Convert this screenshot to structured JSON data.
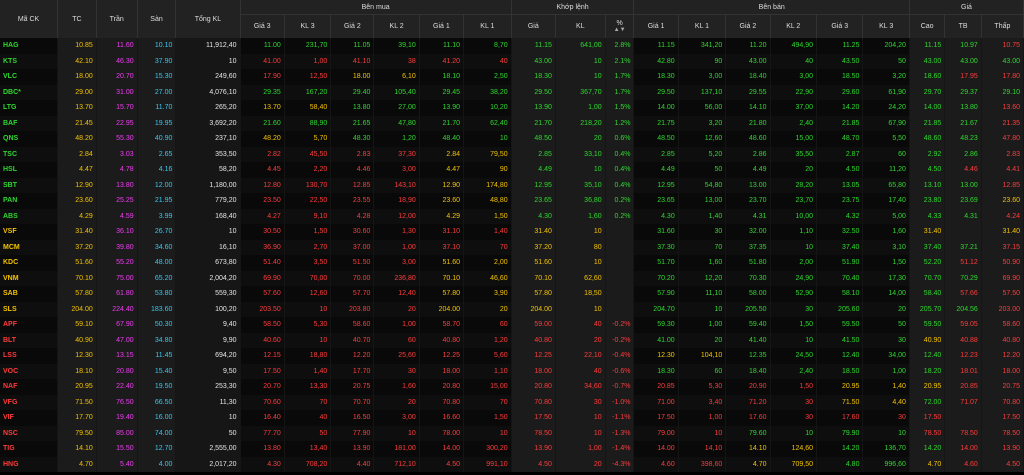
{
  "header": {
    "ma_ck": "Mã CK",
    "tc": "TC",
    "tran": "Trần",
    "san": "Sàn",
    "tong_kl": "Tổng KL",
    "ben_mua": "Bên mua",
    "khop_lenh": "Khớp lệnh",
    "ben_ban": "Bên bán",
    "gia_group": "Giá",
    "gia3": "Giá 3",
    "kl3": "KL 3",
    "gia2": "Giá 2",
    "kl2": "KL 2",
    "gia1": "Giá 1",
    "kl1": "KL 1",
    "khop_gia": "Giá",
    "khop_kl": "KL",
    "khop_pct": "%",
    "cao": "Cao",
    "tb": "TB",
    "thap": "Thấp",
    "sort_icon": "sort-icon"
  },
  "rows": [
    {
      "sym": "HAG",
      "s": "u",
      "tc": "10.85",
      "tran": "11.60",
      "san": "10.10",
      "vol": "11,912,40",
      "b3": "11.00",
      "b3c": "u",
      "bk3": "231,70",
      "b2": "11.05",
      "b2c": "u",
      "bk2": "39,10",
      "b1": "11.10",
      "b1c": "u",
      "bk1": "8,70",
      "mp": "11.15",
      "mc": "u",
      "mk": "641,00",
      "pct": "2.8%",
      "a1": "11.15",
      "a1c": "u",
      "ak1": "341,20",
      "a2": "11.20",
      "a2c": "u",
      "ak2": "494,90",
      "a3": "11.25",
      "a3c": "u",
      "ak3": "204,20",
      "hi": "11.15",
      "hic": "u",
      "av": "10.97",
      "avc": "u",
      "lo": "10.75",
      "loc": "d"
    },
    {
      "sym": "KTS",
      "s": "u",
      "tc": "42.10",
      "tran": "46.30",
      "san": "37.90",
      "vol": "10",
      "b3": "41.00",
      "b3c": "d",
      "bk3": "1,00",
      "b2": "41.10",
      "b2c": "d",
      "bk2": "38",
      "b1": "41.20",
      "b1c": "d",
      "bk1": "40",
      "mp": "43.00",
      "mc": "u",
      "mk": "10",
      "pct": "2.1%",
      "a1": "42.80",
      "a1c": "u",
      "ak1": "90",
      "a2": "43.00",
      "a2c": "u",
      "ak2": "40",
      "a3": "43.50",
      "a3c": "u",
      "ak3": "50",
      "hi": "43.00",
      "hic": "u",
      "av": "43.00",
      "avc": "u",
      "lo": "43.00",
      "loc": "u"
    },
    {
      "sym": "VLC",
      "s": "u",
      "tc": "18.00",
      "tran": "20.70",
      "san": "15.30",
      "vol": "249,60",
      "b3": "17.90",
      "b3c": "d",
      "bk3": "12,50",
      "b2": "18.00",
      "b2c": "e",
      "bk2": "6,10",
      "b1": "18.10",
      "b1c": "u",
      "bk1": "2,50",
      "mp": "18.30",
      "mc": "u",
      "mk": "10",
      "pct": "1.7%",
      "a1": "18.30",
      "a1c": "u",
      "ak1": "3,00",
      "a2": "18.40",
      "a2c": "u",
      "ak2": "3,00",
      "a3": "18.50",
      "a3c": "u",
      "ak3": "3,20",
      "hi": "18.60",
      "hic": "u",
      "av": "17.95",
      "avc": "d",
      "lo": "17.80",
      "loc": "d"
    },
    {
      "sym": "DBC*",
      "s": "u",
      "tc": "29.00",
      "tran": "31.00",
      "san": "27.00",
      "vol": "4,076,10",
      "b3": "29.35",
      "b3c": "u",
      "bk3": "167,20",
      "b2": "29.40",
      "b2c": "u",
      "bk2": "105,40",
      "b1": "29.45",
      "b1c": "u",
      "bk1": "38,20",
      "mp": "29.50",
      "mc": "u",
      "mk": "367,70",
      "pct": "1.7%",
      "a1": "29.50",
      "a1c": "u",
      "ak1": "137,10",
      "a2": "29.55",
      "a2c": "u",
      "ak2": "22,90",
      "a3": "29.60",
      "a3c": "u",
      "ak3": "61,90",
      "hi": "29.70",
      "hic": "u",
      "av": "29.37",
      "avc": "u",
      "lo": "29.10",
      "loc": "u"
    },
    {
      "sym": "LTG",
      "s": "u",
      "tc": "13.70",
      "tran": "15.70",
      "san": "11.70",
      "vol": "265,20",
      "b3": "13.70",
      "b3c": "e",
      "bk3": "58,40",
      "b2": "13.80",
      "b2c": "u",
      "bk2": "27,00",
      "b1": "13.90",
      "b1c": "u",
      "bk1": "10,20",
      "mp": "13.90",
      "mc": "u",
      "mk": "1,00",
      "pct": "1.5%",
      "a1": "14.00",
      "a1c": "u",
      "ak1": "56,00",
      "a2": "14.10",
      "a2c": "u",
      "ak2": "37,00",
      "a3": "14.20",
      "a3c": "u",
      "ak3": "24,20",
      "hi": "14.00",
      "hic": "u",
      "av": "13.80",
      "avc": "u",
      "lo": "13.60",
      "loc": "d"
    },
    {
      "sym": "BAF",
      "s": "u",
      "tc": "21.45",
      "tran": "22.95",
      "san": "19.95",
      "vol": "3,692,20",
      "b3": "21.60",
      "b3c": "u",
      "bk3": "88,90",
      "b2": "21.65",
      "b2c": "u",
      "bk2": "47,80",
      "b1": "21.70",
      "b1c": "u",
      "bk1": "62,40",
      "mp": "21.70",
      "mc": "u",
      "mk": "218,20",
      "pct": "1.2%",
      "a1": "21.75",
      "a1c": "u",
      "ak1": "3,20",
      "a2": "21.80",
      "a2c": "u",
      "ak2": "2,40",
      "a3": "21.85",
      "a3c": "u",
      "ak3": "67,90",
      "hi": "21.85",
      "hic": "u",
      "av": "21.67",
      "avc": "u",
      "lo": "21.35",
      "loc": "d"
    },
    {
      "sym": "QNS",
      "s": "u",
      "tc": "48.20",
      "tran": "55.30",
      "san": "40.90",
      "vol": "237,10",
      "b3": "48.20",
      "b3c": "e",
      "bk3": "5,70",
      "b2": "48.30",
      "b2c": "u",
      "bk2": "1,20",
      "b1": "48.40",
      "b1c": "u",
      "bk1": "10",
      "mp": "48.50",
      "mc": "u",
      "mk": "20",
      "pct": "0.6%",
      "a1": "48.50",
      "a1c": "u",
      "ak1": "12,60",
      "a2": "48.60",
      "a2c": "u",
      "ak2": "15,00",
      "a3": "48.70",
      "a3c": "u",
      "ak3": "5,50",
      "hi": "48.60",
      "hic": "u",
      "av": "48.23",
      "avc": "u",
      "lo": "47.80",
      "loc": "d"
    },
    {
      "sym": "TSC",
      "s": "u",
      "tc": "2.84",
      "tran": "3.03",
      "san": "2.65",
      "vol": "353,50",
      "b3": "2.82",
      "b3c": "d",
      "bk3": "45,50",
      "b2": "2.83",
      "b2c": "d",
      "bk2": "37,30",
      "b1": "2.84",
      "b1c": "e",
      "bk1": "79,50",
      "mp": "2.85",
      "mc": "u",
      "mk": "33,10",
      "pct": "0.4%",
      "a1": "2.85",
      "a1c": "u",
      "ak1": "5,20",
      "a2": "2.86",
      "a2c": "u",
      "ak2": "35,50",
      "a3": "2.87",
      "a3c": "u",
      "ak3": "60",
      "hi": "2.92",
      "hic": "u",
      "av": "2.86",
      "avc": "u",
      "lo": "2.83",
      "loc": "d"
    },
    {
      "sym": "HSL",
      "s": "u",
      "tc": "4.47",
      "tran": "4.78",
      "san": "4.16",
      "vol": "58,20",
      "b3": "4.45",
      "b3c": "d",
      "bk3": "2,20",
      "b2": "4.46",
      "b2c": "d",
      "bk2": "3,00",
      "b1": "4.47",
      "b1c": "e",
      "bk1": "90",
      "mp": "4.49",
      "mc": "u",
      "mk": "10",
      "pct": "0.4%",
      "a1": "4.49",
      "a1c": "u",
      "ak1": "50",
      "a2": "4.49",
      "a2c": "u",
      "ak2": "20",
      "a3": "4.50",
      "a3c": "u",
      "ak3": "11,20",
      "hi": "4.50",
      "hic": "u",
      "av": "4.46",
      "avc": "d",
      "lo": "4.41",
      "loc": "d"
    },
    {
      "sym": "SBT",
      "s": "u",
      "tc": "12.90",
      "tran": "13.80",
      "san": "12.00",
      "vol": "1,180,00",
      "b3": "12.80",
      "b3c": "d",
      "bk3": "130,70",
      "b2": "12.85",
      "b2c": "d",
      "bk2": "143,10",
      "b1": "12.90",
      "b1c": "e",
      "bk1": "174,80",
      "mp": "12.95",
      "mc": "u",
      "mk": "35,10",
      "pct": "0.4%",
      "a1": "12.95",
      "a1c": "u",
      "ak1": "54,80",
      "a2": "13.00",
      "a2c": "u",
      "ak2": "28,20",
      "a3": "13.05",
      "a3c": "u",
      "ak3": "65,80",
      "hi": "13.10",
      "hic": "u",
      "av": "13.00",
      "avc": "u",
      "lo": "12.85",
      "loc": "d"
    },
    {
      "sym": "PAN",
      "s": "u",
      "tc": "23.60",
      "tran": "25.25",
      "san": "21.95",
      "vol": "779,20",
      "b3": "23.50",
      "b3c": "d",
      "bk3": "22,50",
      "b2": "23.55",
      "b2c": "d",
      "bk2": "18,90",
      "b1": "23.60",
      "b1c": "e",
      "bk1": "48,80",
      "mp": "23.65",
      "mc": "u",
      "mk": "36,80",
      "pct": "0.2%",
      "a1": "23.65",
      "a1c": "u",
      "ak1": "13,00",
      "a2": "23.70",
      "a2c": "u",
      "ak2": "23,70",
      "a3": "23.75",
      "a3c": "u",
      "ak3": "17,40",
      "hi": "23.80",
      "hic": "u",
      "av": "23.69",
      "avc": "u",
      "lo": "23.60",
      "loc": "e"
    },
    {
      "sym": "ABS",
      "s": "u",
      "tc": "4.29",
      "tran": "4.59",
      "san": "3.99",
      "vol": "168,40",
      "b3": "4.27",
      "b3c": "d",
      "bk3": "9,10",
      "b2": "4.28",
      "b2c": "d",
      "bk2": "12,00",
      "b1": "4.29",
      "b1c": "e",
      "bk1": "1,50",
      "mp": "4.30",
      "mc": "u",
      "mk": "1,60",
      "pct": "0.2%",
      "a1": "4.30",
      "a1c": "u",
      "ak1": "1,40",
      "a2": "4.31",
      "a2c": "u",
      "ak2": "10,00",
      "a3": "4.32",
      "a3c": "u",
      "ak3": "5,00",
      "hi": "4.33",
      "hic": "u",
      "av": "4.31",
      "avc": "u",
      "lo": "4.24",
      "loc": "d"
    },
    {
      "sym": "VSF",
      "s": "e",
      "tc": "31.40",
      "tran": "36.10",
      "san": "26.70",
      "vol": "10",
      "b3": "30.50",
      "b3c": "d",
      "bk3": "1,50",
      "b2": "30.60",
      "b2c": "d",
      "bk2": "1,30",
      "b1": "31.10",
      "b1c": "d",
      "bk1": "1,40",
      "mp": "31.40",
      "mc": "e",
      "mk": "10",
      "pct": "",
      "a1": "31.60",
      "a1c": "u",
      "ak1": "30",
      "a2": "32.00",
      "a2c": "u",
      "ak2": "1,10",
      "a3": "32.50",
      "a3c": "u",
      "ak3": "1,60",
      "hi": "31.40",
      "hic": "e",
      "av": "",
      "avc": "e",
      "lo": "31.40",
      "loc": "e"
    },
    {
      "sym": "MCM",
      "s": "e",
      "tc": "37.20",
      "tran": "39.80",
      "san": "34.60",
      "vol": "16,10",
      "b3": "36.90",
      "b3c": "d",
      "bk3": "2,70",
      "b2": "37.00",
      "b2c": "d",
      "bk2": "1,00",
      "b1": "37.10",
      "b1c": "d",
      "bk1": "70",
      "mp": "37.20",
      "mc": "e",
      "mk": "80",
      "pct": "",
      "a1": "37.30",
      "a1c": "u",
      "ak1": "70",
      "a2": "37.35",
      "a2c": "u",
      "ak2": "10",
      "a3": "37.40",
      "a3c": "u",
      "ak3": "3,10",
      "hi": "37.40",
      "hic": "u",
      "av": "37.21",
      "avc": "u",
      "lo": "37.15",
      "loc": "d"
    },
    {
      "sym": "KDC",
      "s": "e",
      "tc": "51.60",
      "tran": "55.20",
      "san": "48.00",
      "vol": "673,80",
      "b3": "51.40",
      "b3c": "d",
      "bk3": "3,50",
      "b2": "51.50",
      "b2c": "d",
      "bk2": "3,00",
      "b1": "51.60",
      "b1c": "e",
      "bk1": "2,00",
      "mp": "51.60",
      "mc": "e",
      "mk": "10",
      "pct": "",
      "a1": "51.70",
      "a1c": "u",
      "ak1": "1,60",
      "a2": "51.80",
      "a2c": "u",
      "ak2": "2,00",
      "a3": "51.90",
      "a3c": "u",
      "ak3": "1,50",
      "hi": "52.20",
      "hic": "u",
      "av": "51.12",
      "avc": "d",
      "lo": "50.90",
      "loc": "d"
    },
    {
      "sym": "VNM",
      "s": "e",
      "tc": "70.10",
      "tran": "75.00",
      "san": "65.20",
      "vol": "2,004,20",
      "b3": "69.90",
      "b3c": "d",
      "bk3": "70,00",
      "b2": "70.00",
      "b2c": "d",
      "bk2": "236,80",
      "b1": "70.10",
      "b1c": "e",
      "bk1": "46,60",
      "mp": "70.10",
      "mc": "e",
      "mk": "62,60",
      "pct": "",
      "a1": "70.20",
      "a1c": "u",
      "ak1": "12,20",
      "a2": "70.30",
      "a2c": "u",
      "ak2": "24,90",
      "a3": "70.40",
      "a3c": "u",
      "ak3": "17,30",
      "hi": "70.70",
      "hic": "u",
      "av": "70.29",
      "avc": "u",
      "lo": "69.90",
      "loc": "d"
    },
    {
      "sym": "SAB",
      "s": "e",
      "tc": "57.80",
      "tran": "61.80",
      "san": "53.80",
      "vol": "559,30",
      "b3": "57.60",
      "b3c": "d",
      "bk3": "12,60",
      "b2": "57.70",
      "b2c": "d",
      "bk2": "12,40",
      "b1": "57.80",
      "b1c": "e",
      "bk1": "3,90",
      "mp": "57.80",
      "mc": "e",
      "mk": "18,50",
      "pct": "",
      "a1": "57.90",
      "a1c": "u",
      "ak1": "11,10",
      "a2": "58.00",
      "a2c": "u",
      "ak2": "52,90",
      "a3": "58.10",
      "a3c": "u",
      "ak3": "14,00",
      "hi": "58.40",
      "hic": "u",
      "av": "57.66",
      "avc": "d",
      "lo": "57.50",
      "loc": "d"
    },
    {
      "sym": "SLS",
      "s": "e",
      "tc": "204.00",
      "tran": "224.40",
      "san": "183.60",
      "vol": "100,20",
      "b3": "203.50",
      "b3c": "d",
      "bk3": "10",
      "b2": "203.80",
      "b2c": "d",
      "bk2": "20",
      "b1": "204.00",
      "b1c": "e",
      "bk1": "20",
      "mp": "204.00",
      "mc": "e",
      "mk": "10",
      "pct": "",
      "a1": "204.70",
      "a1c": "u",
      "ak1": "10",
      "a2": "205.50",
      "a2c": "u",
      "ak2": "30",
      "a3": "205.60",
      "a3c": "u",
      "ak3": "20",
      "hi": "205.70",
      "hic": "u",
      "av": "204.56",
      "avc": "u",
      "lo": "203.00",
      "loc": "d"
    },
    {
      "sym": "APF",
      "s": "d",
      "tc": "59.10",
      "tran": "67.90",
      "san": "50.30",
      "vol": "9,40",
      "b3": "58.50",
      "b3c": "d",
      "bk3": "5,30",
      "b2": "58.60",
      "b2c": "d",
      "bk2": "1,00",
      "b1": "58.70",
      "b1c": "d",
      "bk1": "60",
      "mp": "59.00",
      "mc": "d",
      "mk": "40",
      "pct": "-0.2%",
      "a1": "59.30",
      "a1c": "u",
      "ak1": "1,00",
      "a2": "59.40",
      "a2c": "u",
      "ak2": "1,50",
      "a3": "59.50",
      "a3c": "u",
      "ak3": "50",
      "hi": "59.50",
      "hic": "u",
      "av": "59.05",
      "avc": "d",
      "lo": "58.60",
      "loc": "d"
    },
    {
      "sym": "BLT",
      "s": "d",
      "tc": "40.90",
      "tran": "47.00",
      "san": "34.80",
      "vol": "9,90",
      "b3": "40.60",
      "b3c": "d",
      "bk3": "10",
      "b2": "40.70",
      "b2c": "d",
      "bk2": "60",
      "b1": "40.80",
      "b1c": "d",
      "bk1": "1,20",
      "mp": "40.80",
      "mc": "d",
      "mk": "20",
      "pct": "-0.2%",
      "a1": "41.00",
      "a1c": "u",
      "ak1": "20",
      "a2": "41.40",
      "a2c": "u",
      "ak2": "10",
      "a3": "41.50",
      "a3c": "u",
      "ak3": "30",
      "hi": "40.90",
      "hic": "e",
      "av": "40.88",
      "avc": "d",
      "lo": "40.80",
      "loc": "d"
    },
    {
      "sym": "LSS",
      "s": "d",
      "tc": "12.30",
      "tran": "13.15",
      "san": "11.45",
      "vol": "694,20",
      "b3": "12.15",
      "b3c": "d",
      "bk3": "18,80",
      "b2": "12.20",
      "b2c": "d",
      "bk2": "25,60",
      "b1": "12.25",
      "b1c": "d",
      "bk1": "5,60",
      "mp": "12.25",
      "mc": "d",
      "mk": "22,10",
      "pct": "-0.4%",
      "a1": "12.30",
      "a1c": "e",
      "ak1": "104,10",
      "a2": "12.35",
      "a2c": "u",
      "ak2": "24,50",
      "a3": "12.40",
      "a3c": "u",
      "ak3": "34,00",
      "hi": "12.40",
      "hic": "u",
      "av": "12.23",
      "avc": "d",
      "lo": "12.20",
      "loc": "d"
    },
    {
      "sym": "VOC",
      "s": "d",
      "tc": "18.10",
      "tran": "20.80",
      "san": "15.40",
      "vol": "9,50",
      "b3": "17.50",
      "b3c": "d",
      "bk3": "1,40",
      "b2": "17.70",
      "b2c": "d",
      "bk2": "30",
      "b1": "18.00",
      "b1c": "d",
      "bk1": "1,10",
      "mp": "18.00",
      "mc": "d",
      "mk": "40",
      "pct": "-0.6%",
      "a1": "18.30",
      "a1c": "u",
      "ak1": "60",
      "a2": "18.40",
      "a2c": "u",
      "ak2": "2,40",
      "a3": "18.50",
      "a3c": "u",
      "ak3": "1,00",
      "hi": "18.20",
      "hic": "u",
      "av": "18.01",
      "avc": "d",
      "lo": "18.00",
      "loc": "d"
    },
    {
      "sym": "NAF",
      "s": "d",
      "tc": "20.95",
      "tran": "22.40",
      "san": "19.50",
      "vol": "253,30",
      "b3": "20.70",
      "b3c": "d",
      "bk3": "13,30",
      "b2": "20.75",
      "b2c": "d",
      "bk2": "1,60",
      "b1": "20.80",
      "b1c": "d",
      "bk1": "15,00",
      "mp": "20.80",
      "mc": "d",
      "mk": "34,60",
      "pct": "-0.7%",
      "a1": "20.85",
      "a1c": "d",
      "ak1": "5,30",
      "a2": "20.90",
      "a2c": "d",
      "ak2": "1,50",
      "a3": "20.95",
      "a3c": "e",
      "ak3": "1,40",
      "hi": "20.95",
      "hic": "e",
      "av": "20.85",
      "avc": "d",
      "lo": "20.75",
      "loc": "d"
    },
    {
      "sym": "VFG",
      "s": "d",
      "tc": "71.50",
      "tran": "76.50",
      "san": "66.50",
      "vol": "11,30",
      "b3": "70.60",
      "b3c": "d",
      "bk3": "70",
      "b2": "70.70",
      "b2c": "d",
      "bk2": "20",
      "b1": "70.80",
      "b1c": "d",
      "bk1": "70",
      "mp": "70.80",
      "mc": "d",
      "mk": "30",
      "pct": "-1.0%",
      "a1": "71.00",
      "a1c": "d",
      "ak1": "3,40",
      "a2": "71.20",
      "a2c": "d",
      "ak2": "30",
      "a3": "71.50",
      "a3c": "e",
      "ak3": "4,40",
      "hi": "72.00",
      "hic": "u",
      "av": "71.07",
      "avc": "d",
      "lo": "70.80",
      "loc": "d"
    },
    {
      "sym": "VIF",
      "s": "d",
      "tc": "17.70",
      "tran": "19.40",
      "san": "16.00",
      "vol": "10",
      "b3": "16.40",
      "b3c": "d",
      "bk3": "40",
      "b2": "16.50",
      "b2c": "d",
      "bk2": "3,00",
      "b1": "16.60",
      "b1c": "d",
      "bk1": "1,50",
      "mp": "17.50",
      "mc": "d",
      "mk": "10",
      "pct": "-1.1%",
      "a1": "17.50",
      "a1c": "d",
      "ak1": "1,00",
      "a2": "17.60",
      "a2c": "d",
      "ak2": "30",
      "a3": "17.60",
      "a3c": "d",
      "ak3": "30",
      "hi": "17.50",
      "hic": "d",
      "av": "",
      "avc": "d",
      "lo": "17.50",
      "loc": "d"
    },
    {
      "sym": "NSC",
      "s": "d",
      "tc": "79.50",
      "tran": "85.00",
      "san": "74.00",
      "vol": "50",
      "b3": "77.70",
      "b3c": "d",
      "bk3": "50",
      "b2": "77.90",
      "b2c": "d",
      "bk2": "10",
      "b1": "78.00",
      "b1c": "d",
      "bk1": "10",
      "mp": "78.50",
      "mc": "d",
      "mk": "10",
      "pct": "-1.3%",
      "a1": "79.00",
      "a1c": "d",
      "ak1": "10",
      "a2": "79.60",
      "a2c": "u",
      "ak2": "10",
      "a3": "79.90",
      "a3c": "u",
      "ak3": "10",
      "hi": "78.50",
      "hic": "d",
      "av": "78.50",
      "avc": "d",
      "lo": "78.50",
      "loc": "d"
    },
    {
      "sym": "TIG",
      "s": "d",
      "tc": "14.10",
      "tran": "15.50",
      "san": "12.70",
      "vol": "2,555,00",
      "b3": "13.80",
      "b3c": "d",
      "bk3": "13,40",
      "b2": "13.90",
      "b2c": "d",
      "bk2": "181,00",
      "b1": "14.00",
      "b1c": "d",
      "bk1": "300,20",
      "mp": "13.90",
      "mc": "d",
      "mk": "1,00",
      "pct": "-1.4%",
      "a1": "14.00",
      "a1c": "d",
      "ak1": "14,10",
      "a2": "14.10",
      "a2c": "e",
      "ak2": "124,60",
      "a3": "14.20",
      "a3c": "u",
      "ak3": "136,70",
      "hi": "14.20",
      "hic": "u",
      "av": "14.00",
      "avc": "d",
      "lo": "13.90",
      "loc": "d"
    },
    {
      "sym": "HNG",
      "s": "d",
      "tc": "4.70",
      "tran": "5.40",
      "san": "4.00",
      "vol": "2,017,20",
      "b3": "4.30",
      "b3c": "d",
      "bk3": "708,20",
      "b2": "4.40",
      "b2c": "d",
      "bk2": "712,10",
      "b1": "4.50",
      "b1c": "d",
      "bk1": "991,10",
      "mp": "4.50",
      "mc": "d",
      "mk": "20",
      "pct": "-4.3%",
      "a1": "4.60",
      "a1c": "d",
      "ak1": "398,60",
      "a2": "4.70",
      "a2c": "e",
      "ak2": "709,50",
      "a3": "4.80",
      "a3c": "u",
      "ak3": "996,60",
      "hi": "4.70",
      "hic": "e",
      "av": "4.60",
      "avc": "d",
      "lo": "4.50",
      "loc": "d"
    }
  ]
}
